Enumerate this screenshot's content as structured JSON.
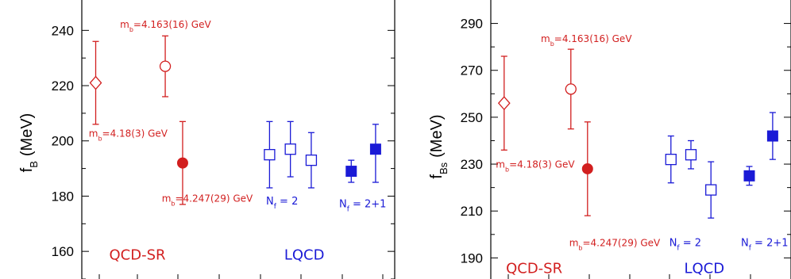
{
  "colors": {
    "red": "#d21f1f",
    "blue": "#1a1ad6",
    "axis": "#000000"
  },
  "chart_data": [
    {
      "type": "scatter",
      "ylabel": "f",
      "ylabel_sub": "B",
      "ylabel_unit": "(MeV)",
      "ylim": [
        150,
        251
      ],
      "yticks": [
        160,
        180,
        200,
        220,
        240
      ],
      "xlim": [
        0.6,
        9.6
      ],
      "points": [
        {
          "x": 1,
          "y": 221,
          "err_plus": 15,
          "err_minus": 15,
          "marker": "diamond-open",
          "color": "red"
        },
        {
          "x": 3,
          "y": 227,
          "err_plus": 11,
          "err_minus": 11,
          "marker": "circle-open",
          "color": "red"
        },
        {
          "x": 3.5,
          "y": 192,
          "err_plus": 15,
          "err_minus": 15,
          "marker": "circle-filled",
          "color": "red"
        },
        {
          "x": 6,
          "y": 195,
          "err_plus": 12,
          "err_minus": 12,
          "marker": "square-open",
          "color": "blue"
        },
        {
          "x": 6.6,
          "y": 197,
          "err_plus": 10,
          "err_minus": 10,
          "marker": "square-open",
          "color": "blue"
        },
        {
          "x": 7.2,
          "y": 193,
          "err_plus": 10,
          "err_minus": 10,
          "marker": "square-open",
          "color": "blue"
        },
        {
          "x": 8.35,
          "y": 189,
          "err_plus": 4,
          "err_minus": 4,
          "marker": "square-filled",
          "color": "blue"
        },
        {
          "x": 9.05,
          "y": 197,
          "err_plus": 9,
          "err_minus": 12,
          "marker": "square-filled",
          "color": "blue"
        }
      ],
      "annotations": [
        {
          "base": "m",
          "sub": "b",
          "rest": "=4.163(16) GeV",
          "color": "red",
          "x": 1.7,
          "y": 241
        },
        {
          "base": "m",
          "sub": "b",
          "rest": "=4.18(3) GeV",
          "color": "red",
          "x": 0.8,
          "y": 201.5
        },
        {
          "base": "m",
          "sub": "b",
          "rest": "=4.247(29) GeV",
          "color": "red",
          "x": 2.9,
          "y": 178
        },
        {
          "base": "N",
          "sub": "f",
          "rest": " = 2",
          "color": "blue",
          "x": 5.9,
          "y": 177
        },
        {
          "base": "N",
          "sub": "f",
          "rest": " = 2+1",
          "color": "blue",
          "x": 8.0,
          "y": 176
        }
      ],
      "group_labels": [
        {
          "text": "QCD-SR",
          "color": "red",
          "x": 2.2,
          "y": 157
        },
        {
          "text": "LQCD",
          "color": "blue",
          "x": 7.0,
          "y": 157
        }
      ]
    },
    {
      "type": "scatter",
      "ylabel": "f",
      "ylabel_sub": "Bs",
      "ylabel_unit": "(MeV)",
      "ylim": [
        181,
        300
      ],
      "yticks": [
        190,
        210,
        230,
        250,
        270,
        290
      ],
      "xlim": [
        0.6,
        9.6
      ],
      "points": [
        {
          "x": 1,
          "y": 256,
          "err_plus": 20,
          "err_minus": 20,
          "marker": "diamond-open",
          "color": "red"
        },
        {
          "x": 3,
          "y": 262,
          "err_plus": 17,
          "err_minus": 17,
          "marker": "circle-open",
          "color": "red"
        },
        {
          "x": 3.5,
          "y": 228,
          "err_plus": 20,
          "err_minus": 20,
          "marker": "circle-filled",
          "color": "red"
        },
        {
          "x": 6,
          "y": 232,
          "err_plus": 10,
          "err_minus": 10,
          "marker": "square-open",
          "color": "blue"
        },
        {
          "x": 6.6,
          "y": 234,
          "err_plus": 6,
          "err_minus": 6,
          "marker": "square-open",
          "color": "blue"
        },
        {
          "x": 7.2,
          "y": 219,
          "err_plus": 12,
          "err_minus": 12,
          "marker": "square-open",
          "color": "blue"
        },
        {
          "x": 8.35,
          "y": 225,
          "err_plus": 4,
          "err_minus": 4,
          "marker": "square-filled",
          "color": "blue"
        },
        {
          "x": 9.05,
          "y": 242,
          "err_plus": 10,
          "err_minus": 10,
          "marker": "square-filled",
          "color": "blue"
        }
      ],
      "annotations": [
        {
          "base": "m",
          "sub": "b",
          "rest": "=4.163(16) GeV",
          "color": "red",
          "x": 2.1,
          "y": 282
        },
        {
          "base": "m",
          "sub": "b",
          "rest": "=4.18(3) GeV",
          "color": "red",
          "x": 0.75,
          "y": 228.5
        },
        {
          "base": "m",
          "sub": "b",
          "rest": "=4.247(29) GeV",
          "color": "red",
          "x": 2.95,
          "y": 195
        },
        {
          "base": "N",
          "sub": "f",
          "rest": " = 2",
          "color": "blue",
          "x": 5.95,
          "y": 195
        },
        {
          "base": "N",
          "sub": "f",
          "rest": " = 2+1",
          "color": "blue",
          "x": 8.1,
          "y": 195
        }
      ],
      "group_labels": [
        {
          "text": "QCD-SR",
          "color": "red",
          "x": 1.9,
          "y": 183.5
        },
        {
          "text": "LQCD",
          "color": "blue",
          "x": 7.0,
          "y": 183.5
        }
      ]
    }
  ]
}
